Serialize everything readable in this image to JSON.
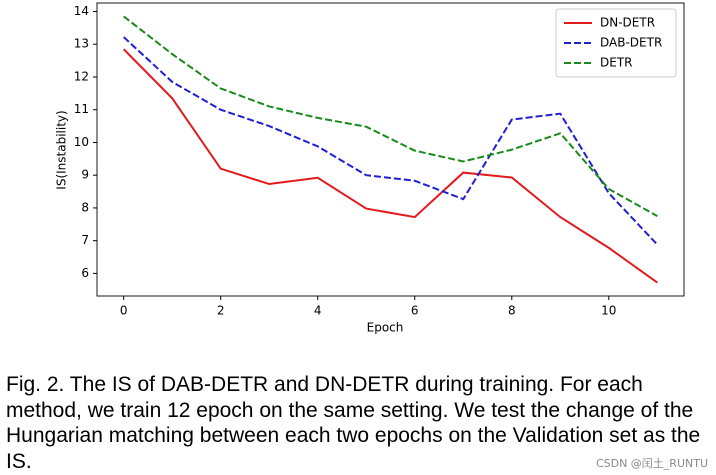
{
  "chart_data": {
    "type": "line",
    "xlabel": "Epoch",
    "ylabel": "IS(Instability)",
    "x": [
      0,
      1,
      2,
      3,
      4,
      5,
      6,
      7,
      8,
      9,
      10,
      11
    ],
    "series": [
      {
        "name": "DN-DETR",
        "color": "#e31a1c",
        "dash": "solid",
        "values": [
          12.85,
          11.35,
          9.2,
          8.73,
          8.92,
          7.98,
          7.72,
          9.08,
          8.93,
          7.72,
          6.78,
          5.72
        ]
      },
      {
        "name": "DAB-DETR",
        "color": "#1f1fd6",
        "dash": "dashed",
        "values": [
          13.22,
          11.85,
          11.0,
          10.5,
          9.88,
          9.0,
          8.83,
          8.27,
          10.7,
          10.88,
          8.45,
          6.88
        ]
      },
      {
        "name": "DETR",
        "color": "#1a8a1a",
        "dash": "dashed",
        "values": [
          13.85,
          12.7,
          11.65,
          11.1,
          10.75,
          10.48,
          9.75,
          9.42,
          9.78,
          10.28,
          8.58,
          7.75
        ]
      }
    ],
    "xlim": [
      -0.55,
      11.55
    ],
    "xticks": [
      0,
      2,
      4,
      6,
      8,
      10
    ],
    "ylim": [
      5.31,
      14.26
    ],
    "yticks": [
      6,
      7,
      8,
      9,
      10,
      11,
      12,
      13,
      14
    ],
    "legend": "upper right",
    "grid": false
  },
  "caption": "Fig. 2. The IS of DAB-DETR and DN-DETR during training. For each method, we train 12 epoch on the same setting. We test the change of the Hungarian matching between each two epochs on the Validation set as the IS.",
  "watermark": "CSDN @闰土_RUNTU"
}
